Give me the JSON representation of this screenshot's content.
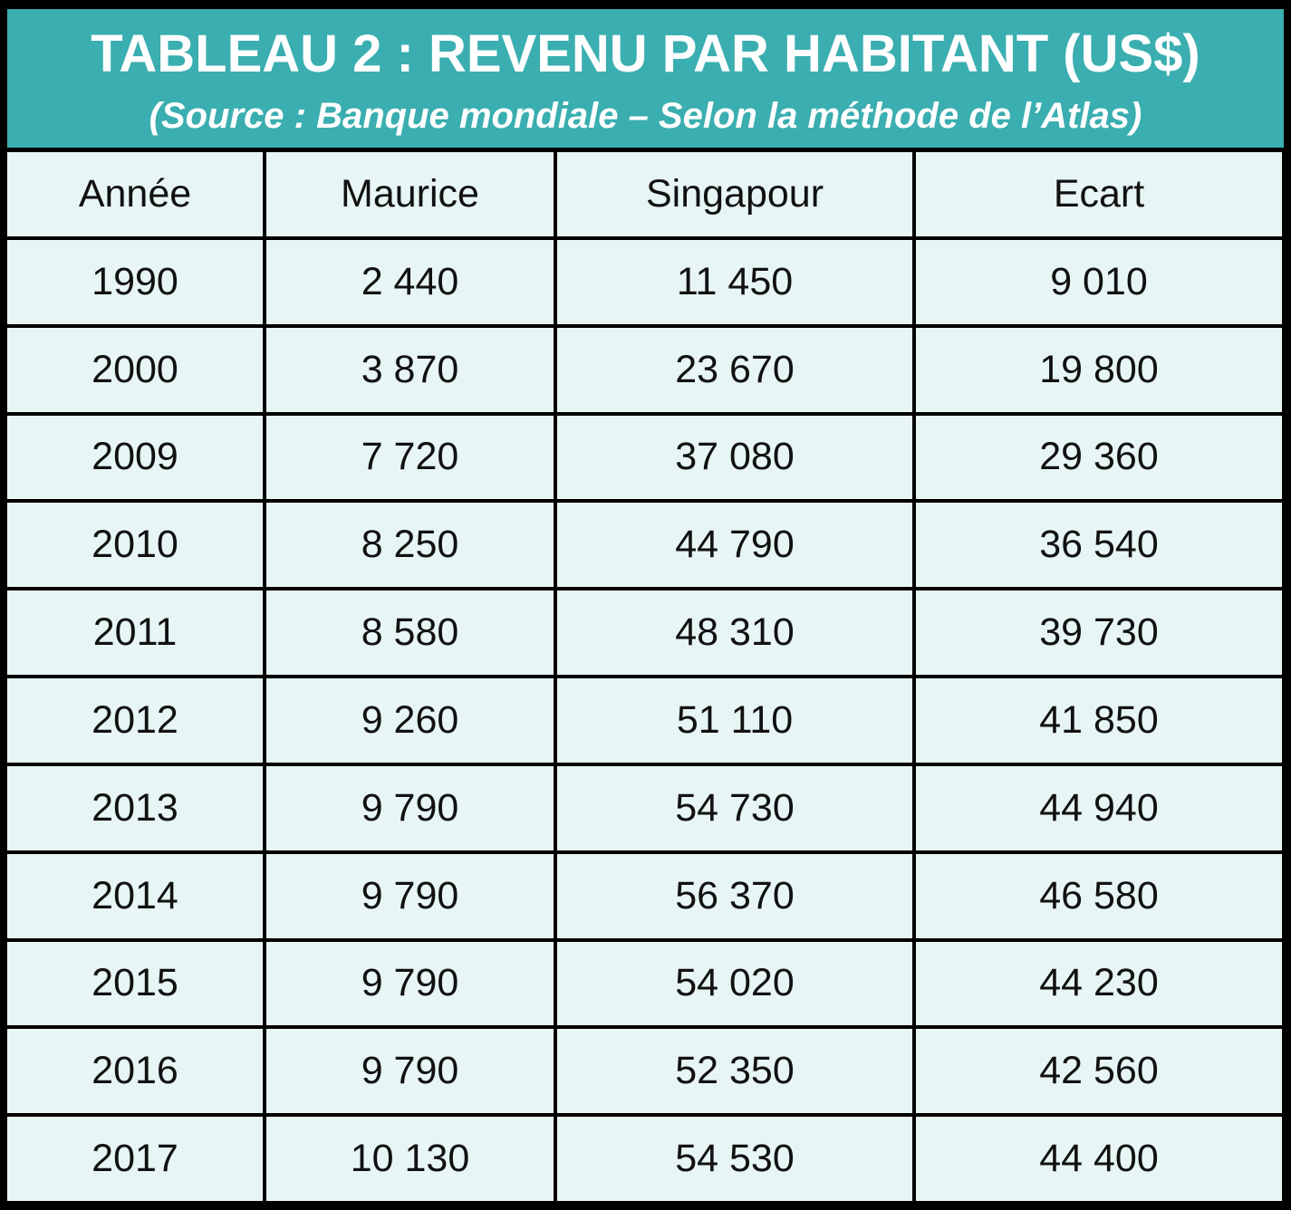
{
  "header": {
    "title": "TABLEAU 2 : REVENU PAR HABITANT (US$)",
    "subtitle": "(Source : Banque mondiale – Selon la méthode de l’Atlas)"
  },
  "colors": {
    "header_bg": "#3aaeb0",
    "cell_bg": "#e8f5f5",
    "border": "#000000"
  },
  "chart_data": {
    "type": "table",
    "title": "TABLEAU 2 : REVENU PAR HABITANT (US$)",
    "subtitle": "(Source : Banque mondiale – Selon la méthode de l’Atlas)",
    "columns": [
      "Année",
      "Maurice",
      "Singapour",
      "Ecart"
    ],
    "rows": [
      [
        "1990",
        "2 440",
        "11 450",
        "9 010"
      ],
      [
        "2000",
        "3 870",
        "23 670",
        "19 800"
      ],
      [
        "2009",
        "7 720",
        "37 080",
        "29 360"
      ],
      [
        "2010",
        "8 250",
        "44 790",
        "36 540"
      ],
      [
        "2011",
        "8 580",
        "48 310",
        "39 730"
      ],
      [
        "2012",
        "9 260",
        "51 110",
        "41 850"
      ],
      [
        "2013",
        "9 790",
        "54 730",
        "44 940"
      ],
      [
        "2014",
        "9 790",
        "56 370",
        "46 580"
      ],
      [
        "2015",
        "9 790",
        "54 020",
        "44 230"
      ],
      [
        "2016",
        "9 790",
        "52 350",
        "42 560"
      ],
      [
        "2017",
        "10 130",
        "54 530",
        "44 400"
      ]
    ]
  }
}
